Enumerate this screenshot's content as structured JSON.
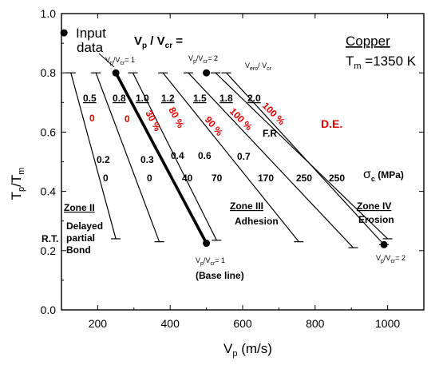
{
  "chart_data": {
    "type": "line",
    "xlabel": "V",
    "xlabel_sub": "p",
    "xlabel_unit": " (m/s)",
    "ylabel": "T",
    "ylabel_sub1": "p",
    "ylabel_mid": "/T",
    "ylabel_sub2": "m",
    "xlim": [
      100,
      1100
    ],
    "ylim": [
      0.0,
      1.0
    ],
    "xticks": [
      "200",
      "400",
      "600",
      "800",
      "1000"
    ],
    "yticks": [
      "0.0",
      "0.2",
      "0.4",
      "0.6",
      "0.8",
      "1.0"
    ],
    "grid": false,
    "series": [
      {
        "name": "0.5",
        "points": [
          [
            126,
            0.8
          ],
          [
            250,
            0.24
          ]
        ],
        "bold": false
      },
      {
        "name": "0.8",
        "points": [
          [
            195,
            0.8
          ],
          [
            370,
            0.23
          ]
        ],
        "bold": false
      },
      {
        "name": "1.0",
        "points": [
          [
            250,
            0.8
          ],
          [
            500,
            0.225
          ]
        ],
        "bold": true
      },
      {
        "name": "1.2",
        "points": [
          [
            297,
            0.8
          ],
          [
            528,
            0.235
          ]
        ],
        "bold": false
      },
      {
        "name": "1.5",
        "points": [
          [
            380,
            0.8
          ],
          [
            755,
            0.23
          ]
        ],
        "bold": false
      },
      {
        "name": "1.8",
        "points": [
          [
            450,
            0.8
          ],
          [
            905,
            0.21
          ]
        ],
        "bold": false
      },
      {
        "name": "2.0",
        "points": [
          [
            525,
            0.8
          ],
          [
            1000,
            0.24
          ]
        ],
        "bold": false
      },
      {
        "name": "",
        "points": [
          [
            555,
            0.8
          ],
          [
            990,
            0.22
          ]
        ],
        "bold": false
      }
    ],
    "points": [
      {
        "x": 250,
        "y": 0.8
      },
      {
        "x": 500,
        "y": 0.8
      },
      {
        "x": 500,
        "y": 0.225
      },
      {
        "x": 990,
        "y": 0.22
      },
      {
        "x": 107,
        "y": 0.935
      }
    ],
    "labels": {
      "input": [
        "Input",
        "data"
      ],
      "vpvcr": {
        "main": "V",
        "sub": "p",
        "slash": " / V",
        "sub2": "cr",
        "eq": " ="
      },
      "copper": "Copper",
      "tm": {
        "T": "T",
        "sub": "m",
        "val": " =1350 K"
      },
      "small_vpvcr1": {
        "a": "V",
        "b": "p",
        "c": "/V",
        "d": "cr",
        "e": "= 1"
      },
      "small_vpvcr2": {
        "a": "V",
        "b": "p",
        "c": "/V",
        "d": "cr",
        "e": "= 2"
      },
      "small_vero": {
        "a": "V",
        "b": "ero",
        "c": "/ V",
        "d": "cr"
      },
      "ratios": [
        "0.5",
        "0.8",
        "1.0",
        "1.2",
        "1.5",
        "1.8",
        "2.0"
      ],
      "de_values": [
        "0",
        "0",
        "30 %",
        "80 %",
        "90 %",
        "100 %",
        "100 %"
      ],
      "de_label": "D.E.",
      "fr_label": "F.R",
      "stress_row1": [
        "0.2",
        "0.3",
        "0.4",
        "0.6",
        "0.7"
      ],
      "stress_row2": [
        "0",
        "0",
        "40",
        "70",
        "170",
        "250",
        "250"
      ],
      "sigma": {
        "s": "σ",
        "sub": "c",
        "unit": " (MPa)"
      },
      "zone2": [
        "Zone II",
        "Delayed",
        "partial",
        "Bond"
      ],
      "rt": "R.T.",
      "zone3": [
        "Zone III",
        "Adhesion"
      ],
      "zone4": [
        "Zone IV",
        "Erosion"
      ],
      "baseline": "(Base line)"
    },
    "colors": {
      "red": "#e00000",
      "black": "#000000"
    }
  }
}
